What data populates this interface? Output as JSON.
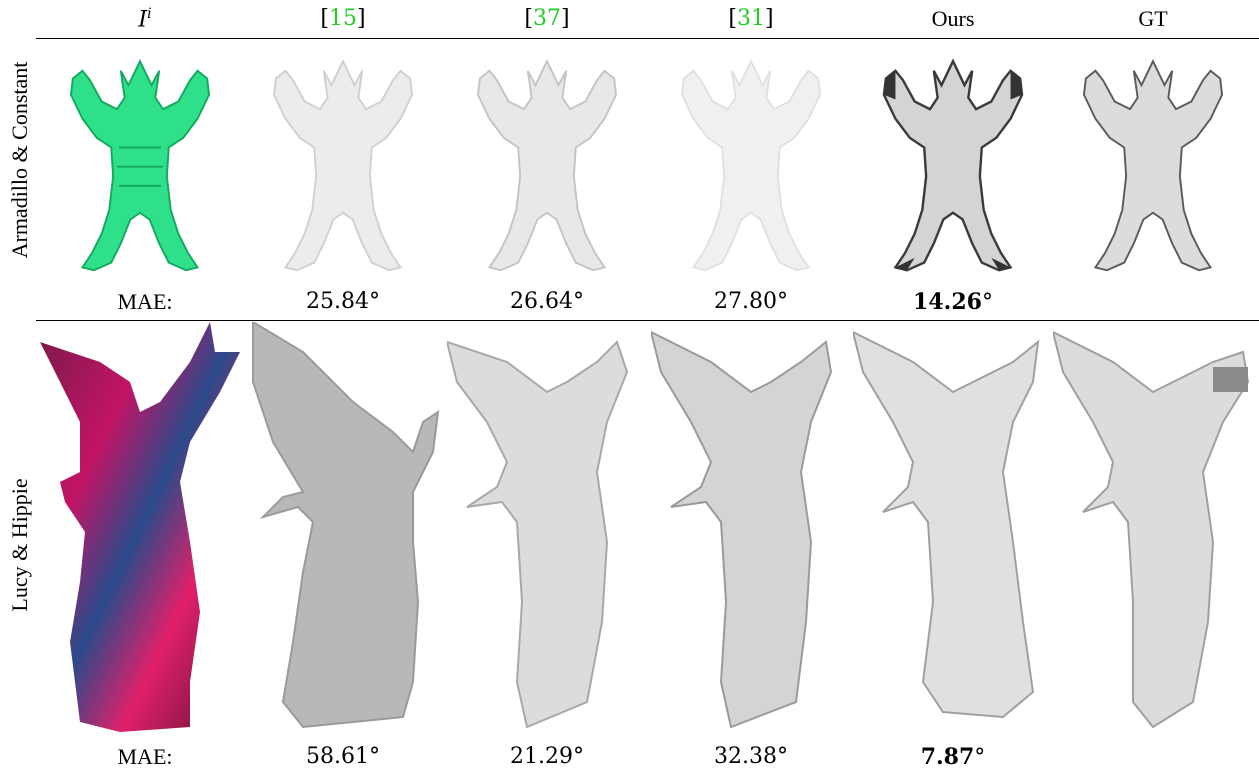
{
  "columns": {
    "input": {
      "symbol": "I",
      "superscript": "i"
    },
    "c1": "15",
    "c2": "37",
    "c3": "31",
    "ours": "Ours",
    "gt": "GT"
  },
  "rows": [
    {
      "label": "Armadillo & Constant",
      "mae_label": "MAE:",
      "mae": {
        "c1": "25.84°",
        "c2": "26.64°",
        "c3": "27.80°",
        "ours_num": "14.26",
        "ours_unit": "°"
      }
    },
    {
      "label": "Lucy & Hippie",
      "mae_label": "MAE:",
      "mae": {
        "c1": "58.61°",
        "c2": "21.29°",
        "c3": "32.38°",
        "ours_num": "7.87",
        "ours_unit": "°"
      }
    }
  ],
  "colors": {
    "citation": "#22cc22",
    "armadillo_input": "#2ee08a",
    "render_light": "#e6e6e6",
    "render_mid": "#c8c8c8",
    "render_dark": "#3a3a3a"
  }
}
